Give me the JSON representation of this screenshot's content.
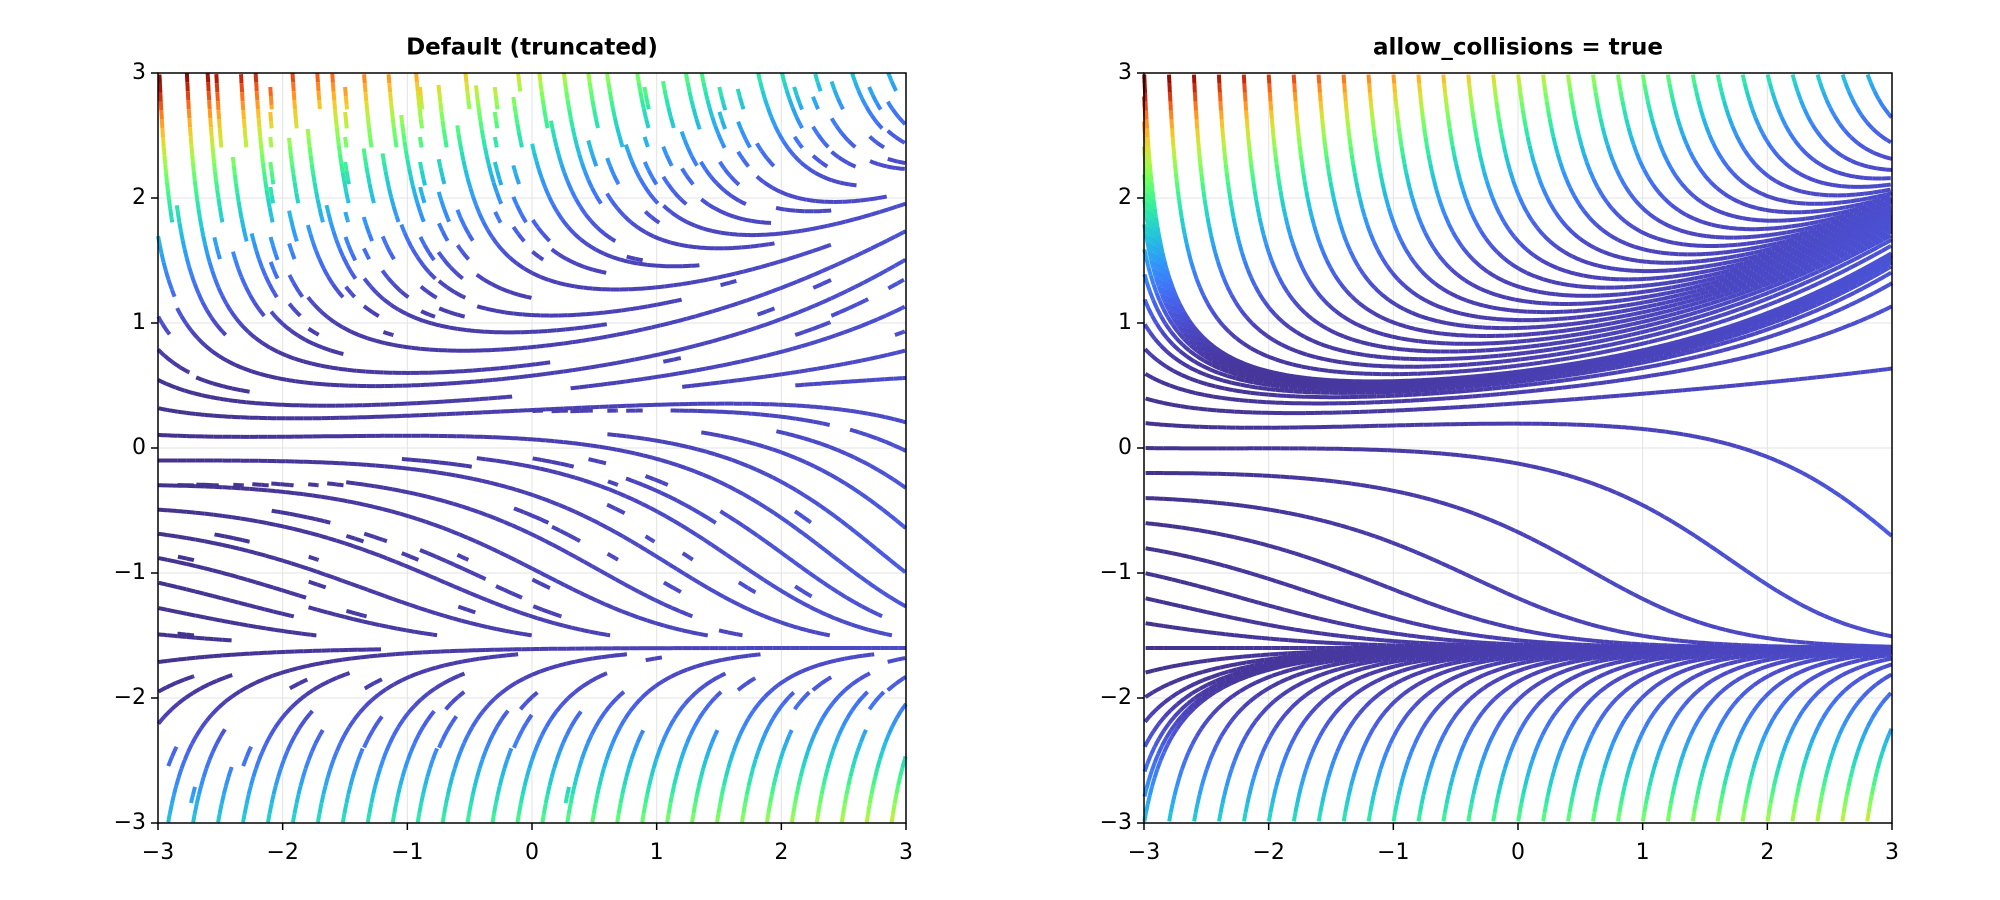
{
  "chart_data": [
    {
      "type": "streamplot",
      "title": "Default (truncated)",
      "allow_collisions": false,
      "xlim": [
        -3,
        3
      ],
      "ylim": [
        -3,
        3
      ],
      "grid": true,
      "xticks": [
        {
          "value": -3,
          "label": "−3"
        },
        {
          "value": -2,
          "label": "−2"
        },
        {
          "value": -1,
          "label": "−1"
        },
        0,
        1,
        2,
        3
      ],
      "yticks": [
        {
          "value": -3,
          "label": "−3"
        },
        {
          "value": -2,
          "label": "−2"
        },
        {
          "value": -1,
          "label": "−1"
        },
        0,
        1,
        2,
        3
      ]
    },
    {
      "type": "streamplot",
      "title": "allow_collisions = true",
      "allow_collisions": true,
      "xlim": [
        -3,
        3
      ],
      "ylim": [
        -3,
        3
      ],
      "grid": true,
      "xticks": [
        {
          "value": -3,
          "label": "−3"
        },
        {
          "value": -2,
          "label": "−2"
        },
        {
          "value": -1,
          "label": "−1"
        },
        0,
        1,
        2,
        3
      ],
      "yticks": [
        {
          "value": -3,
          "label": "−3"
        },
        {
          "value": -2,
          "label": "−2"
        },
        {
          "value": -1,
          "label": "−1"
        },
        0,
        1,
        2,
        3
      ]
    }
  ]
}
